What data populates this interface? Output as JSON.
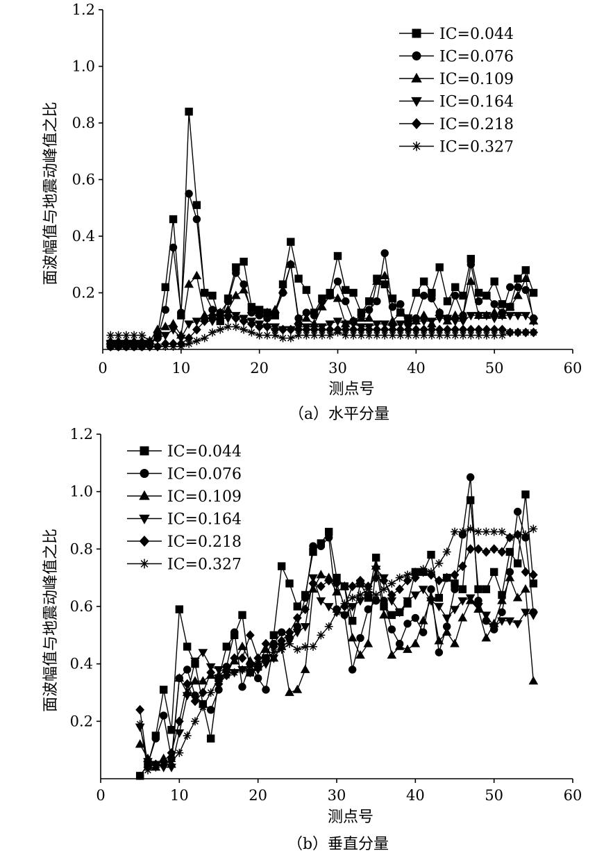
{
  "chart_data": [
    {
      "type": "line",
      "panel": "a",
      "caption": "（a）水平分量",
      "xlabel": "测点号",
      "ylabel": "面波幅值与地震动峰值之比",
      "xlim": [
        0,
        60
      ],
      "ylim": [
        0,
        1.2
      ],
      "xticks": [
        "0",
        "10",
        "20",
        "30",
        "40",
        "50",
        "60"
      ],
      "yticks": [
        "0.2",
        "0.4",
        "0.6",
        "0.8",
        "1.0",
        "1.2"
      ],
      "legend_position": "top-right",
      "x": [
        1,
        2,
        3,
        4,
        5,
        6,
        7,
        8,
        9,
        10,
        11,
        12,
        13,
        14,
        15,
        16,
        17,
        18,
        19,
        20,
        21,
        22,
        23,
        24,
        25,
        26,
        27,
        28,
        29,
        30,
        31,
        32,
        33,
        34,
        35,
        36,
        37,
        38,
        39,
        40,
        41,
        42,
        43,
        44,
        45,
        46,
        47,
        48,
        49,
        50,
        51,
        52,
        53,
        54,
        55
      ],
      "series": [
        {
          "name": "IC=0.044",
          "marker": "square",
          "values": [
            0.02,
            0.02,
            0.02,
            0.02,
            0.02,
            0.02,
            0.05,
            0.22,
            0.46,
            0.12,
            0.84,
            0.51,
            0.2,
            0.19,
            0.1,
            0.18,
            0.29,
            0.31,
            0.15,
            0.14,
            0.13,
            0.12,
            0.23,
            0.38,
            0.25,
            0.21,
            0.13,
            0.18,
            0.2,
            0.33,
            0.21,
            0.2,
            0.13,
            0.17,
            0.25,
            0.23,
            0.18,
            0.13,
            0.11,
            0.2,
            0.24,
            0.2,
            0.29,
            0.17,
            0.22,
            0.19,
            0.32,
            0.2,
            0.19,
            0.24,
            0.16,
            0.15,
            0.25,
            0.28,
            0.2
          ]
        },
        {
          "name": "IC=0.076",
          "marker": "circle",
          "values": [
            0.01,
            0.01,
            0.01,
            0.01,
            0.01,
            0.02,
            0.04,
            0.14,
            0.36,
            0.13,
            0.55,
            0.46,
            0.2,
            0.14,
            0.13,
            0.17,
            0.27,
            0.23,
            0.13,
            0.12,
            0.11,
            0.13,
            0.2,
            0.3,
            0.11,
            0.13,
            0.12,
            0.17,
            0.19,
            0.24,
            0.17,
            0.1,
            0.12,
            0.14,
            0.17,
            0.34,
            0.15,
            0.16,
            0.09,
            0.11,
            0.19,
            0.18,
            0.13,
            0.11,
            0.19,
            0.12,
            0.3,
            0.17,
            0.19,
            0.16,
            0.13,
            0.22,
            0.22,
            0.21,
            0.11
          ]
        },
        {
          "name": "IC=0.109",
          "marker": "triangle-up",
          "values": [
            0.03,
            0.03,
            0.03,
            0.03,
            0.03,
            0.03,
            0.07,
            0.08,
            0.09,
            0.05,
            0.23,
            0.26,
            0.12,
            0.12,
            0.13,
            0.14,
            0.19,
            0.21,
            0.14,
            0.13,
            0.13,
            0.14,
            0.21,
            0.3,
            0.1,
            0.11,
            0.09,
            0.15,
            0.19,
            0.18,
            0.09,
            0.1,
            0.11,
            0.11,
            0.24,
            0.26,
            0.1,
            0.13,
            0.1,
            0.1,
            0.12,
            0.09,
            0.13,
            0.1,
            0.12,
            0.12,
            0.24,
            0.12,
            0.12,
            0.13,
            0.12,
            0.15,
            0.19,
            0.25,
            0.1
          ]
        },
        {
          "name": "IC=0.164",
          "marker": "triangle-down",
          "values": [
            0.02,
            0.02,
            0.02,
            0.02,
            0.02,
            0.02,
            0.04,
            0.05,
            0.07,
            0.04,
            0.09,
            0.1,
            0.1,
            0.1,
            0.11,
            0.11,
            0.12,
            0.11,
            0.1,
            0.09,
            0.08,
            0.08,
            0.07,
            0.07,
            0.08,
            0.08,
            0.08,
            0.08,
            0.09,
            0.1,
            0.09,
            0.09,
            0.08,
            0.08,
            0.09,
            0.09,
            0.08,
            0.09,
            0.1,
            0.1,
            0.1,
            0.1,
            0.11,
            0.11,
            0.1,
            0.1,
            0.12,
            0.12,
            0.12,
            0.11,
            0.12,
            0.12,
            0.12,
            0.12,
            0.1
          ]
        },
        {
          "name": "IC=0.218",
          "marker": "diamond",
          "values": [
            0.01,
            0.01,
            0.01,
            0.01,
            0.01,
            0.01,
            0.01,
            0.02,
            0.02,
            0.02,
            0.04,
            0.07,
            0.1,
            0.12,
            0.12,
            0.12,
            0.11,
            0.1,
            0.09,
            0.08,
            0.08,
            0.07,
            0.07,
            0.07,
            0.07,
            0.07,
            0.07,
            0.07,
            0.07,
            0.07,
            0.07,
            0.07,
            0.07,
            0.07,
            0.07,
            0.07,
            0.07,
            0.07,
            0.07,
            0.07,
            0.07,
            0.07,
            0.07,
            0.07,
            0.07,
            0.07,
            0.07,
            0.07,
            0.07,
            0.07,
            0.07,
            0.06,
            0.06,
            0.06,
            0.06
          ]
        },
        {
          "name": "IC=0.327",
          "marker": "asterisk",
          "values": [
            0.05,
            0.05,
            0.05,
            0.05,
            0.05,
            0.03,
            0.01,
            0.01,
            0.01,
            0.01,
            0.02,
            0.03,
            0.04,
            0.06,
            0.07,
            0.08,
            0.08,
            0.07,
            0.06,
            0.05,
            0.05,
            0.05,
            0.04,
            0.04,
            0.05,
            0.05,
            0.05,
            0.05,
            0.05,
            0.06,
            0.05,
            0.05,
            0.05,
            0.05,
            0.05,
            0.05,
            0.05,
            0.05,
            0.05,
            0.05,
            0.05,
            0.05,
            0.05,
            0.05,
            0.05,
            0.05,
            0.05,
            0.05,
            0.05,
            0.05,
            0.05,
            0.06,
            0.06,
            0.06,
            0.06
          ]
        }
      ]
    },
    {
      "type": "line",
      "panel": "b",
      "caption": "（b）垂直分量",
      "xlabel": "测点号",
      "ylabel": "面波幅值与地震动峰值之比",
      "xlim": [
        0,
        60
      ],
      "ylim": [
        0,
        1.2
      ],
      "xticks": [
        "0",
        "10",
        "20",
        "30",
        "40",
        "50",
        "60"
      ],
      "yticks": [
        "0.2",
        "0.4",
        "0.6",
        "0.8",
        "1.0",
        "1.2"
      ],
      "legend_position": "top-left",
      "x": [
        5,
        6,
        7,
        8,
        9,
        10,
        11,
        12,
        13,
        14,
        15,
        16,
        17,
        18,
        19,
        20,
        21,
        22,
        23,
        24,
        25,
        26,
        27,
        28,
        29,
        30,
        31,
        32,
        33,
        34,
        35,
        36,
        37,
        38,
        39,
        40,
        41,
        42,
        43,
        44,
        45,
        46,
        47,
        48,
        49,
        50,
        51,
        52,
        53,
        54,
        55
      ],
      "series": [
        {
          "name": "IC=0.044",
          "marker": "square",
          "values": [
            0.01,
            0.05,
            0.15,
            0.31,
            0.17,
            0.59,
            0.46,
            0.4,
            0.26,
            0.14,
            0.35,
            0.46,
            0.5,
            0.57,
            0.37,
            0.39,
            0.42,
            0.5,
            0.74,
            0.68,
            0.6,
            0.64,
            0.79,
            0.82,
            0.86,
            0.7,
            0.67,
            0.55,
            0.68,
            0.63,
            0.77,
            0.6,
            0.57,
            0.58,
            0.61,
            0.72,
            0.72,
            0.78,
            0.63,
            0.7,
            0.68,
            0.66,
            0.97,
            0.66,
            0.66,
            0.72,
            0.64,
            0.79,
            0.75,
            0.99,
            0.68
          ]
        },
        {
          "name": "IC=0.076",
          "marker": "circle",
          "values": [
            0.01,
            0.05,
            0.14,
            0.22,
            0.07,
            0.35,
            0.38,
            0.29,
            0.26,
            0.24,
            0.31,
            0.39,
            0.51,
            0.32,
            0.4,
            0.35,
            0.31,
            0.47,
            0.51,
            0.49,
            0.53,
            0.63,
            0.81,
            0.81,
            0.84,
            0.59,
            0.57,
            0.38,
            0.49,
            0.59,
            0.62,
            0.62,
            0.52,
            0.47,
            0.54,
            0.56,
            0.51,
            0.66,
            0.44,
            0.53,
            0.66,
            0.85,
            1.05,
            0.62,
            0.55,
            0.52,
            0.58,
            0.72,
            0.93,
            0.84,
            0.58
          ]
        },
        {
          "name": "IC=0.109",
          "marker": "triangle-up",
          "values": [
            0.12,
            0.07,
            0.04,
            0.07,
            0.05,
            0.35,
            0.3,
            0.34,
            0.34,
            0.36,
            0.36,
            0.38,
            0.41,
            0.46,
            0.41,
            0.4,
            0.45,
            0.42,
            0.46,
            0.3,
            0.31,
            0.38,
            0.66,
            0.71,
            0.7,
            0.65,
            0.67,
            0.49,
            0.43,
            0.47,
            0.74,
            0.57,
            0.43,
            0.46,
            0.45,
            0.47,
            0.55,
            0.63,
            0.48,
            0.51,
            0.47,
            0.56,
            0.62,
            0.59,
            0.49,
            0.54,
            0.62,
            0.7,
            0.63,
            0.66,
            0.34
          ]
        },
        {
          "name": "IC=0.164",
          "marker": "triangle-down",
          "values": [
            0.18,
            0.06,
            0.05,
            0.04,
            0.04,
            0.16,
            0.29,
            0.41,
            0.44,
            0.39,
            0.38,
            0.37,
            0.37,
            0.38,
            0.37,
            0.38,
            0.4,
            0.42,
            0.46,
            0.48,
            0.51,
            0.53,
            0.7,
            0.62,
            0.6,
            0.58,
            0.57,
            0.6,
            0.62,
            0.64,
            0.73,
            0.7,
            0.62,
            0.58,
            0.62,
            0.64,
            0.66,
            0.62,
            0.6,
            0.56,
            0.59,
            0.62,
            0.63,
            0.6,
            0.57,
            0.53,
            0.55,
            0.55,
            0.54,
            0.58,
            0.57
          ]
        },
        {
          "name": "IC=0.218",
          "marker": "diamond",
          "values": [
            0.24,
            0.04,
            0.05,
            0.06,
            0.09,
            0.2,
            0.33,
            0.27,
            0.3,
            0.37,
            0.33,
            0.36,
            0.42,
            0.42,
            0.5,
            0.42,
            0.47,
            0.46,
            0.48,
            0.51,
            0.56,
            0.59,
            0.68,
            0.67,
            0.69,
            0.68,
            0.6,
            0.67,
            0.69,
            0.67,
            0.7,
            0.69,
            0.64,
            0.66,
            0.69,
            0.7,
            0.72,
            0.71,
            0.69,
            0.7,
            0.71,
            0.74,
            0.8,
            0.8,
            0.79,
            0.8,
            0.79,
            0.84,
            0.85,
            0.72,
            0.71
          ]
        },
        {
          "name": "IC=0.327",
          "marker": "asterisk",
          "values": [
            0.19,
            0.03,
            0.04,
            0.05,
            0.06,
            0.09,
            0.15,
            0.2,
            0.25,
            0.3,
            0.35,
            0.36,
            0.37,
            0.38,
            0.39,
            0.4,
            0.42,
            0.44,
            0.45,
            0.47,
            0.45,
            0.46,
            0.46,
            0.5,
            0.53,
            0.58,
            0.61,
            0.63,
            0.64,
            0.66,
            0.64,
            0.66,
            0.68,
            0.7,
            0.71,
            0.72,
            0.73,
            0.72,
            0.75,
            0.79,
            0.86,
            0.86,
            0.87,
            0.86,
            0.86,
            0.86,
            0.86,
            0.84,
            0.85,
            0.85,
            0.87
          ]
        }
      ]
    }
  ]
}
